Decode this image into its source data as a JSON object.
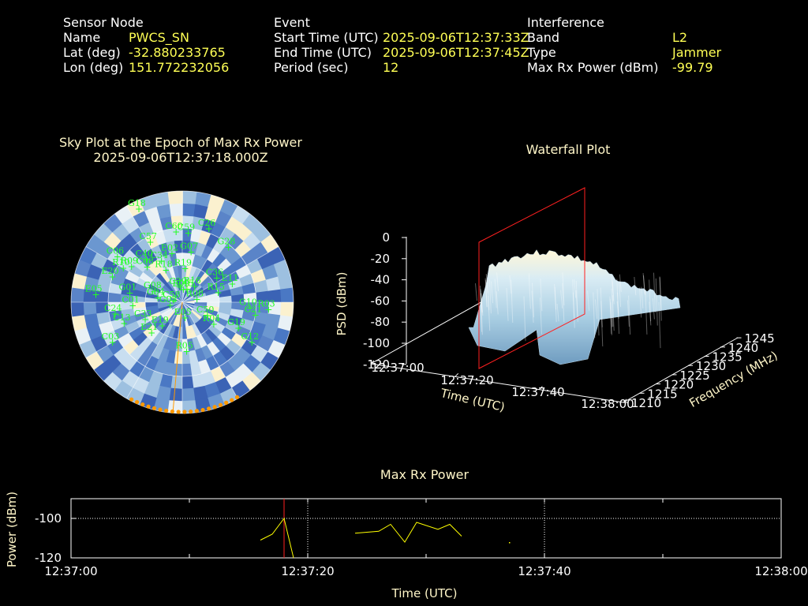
{
  "header": {
    "sensor": {
      "title": "Sensor Node",
      "rows": [
        {
          "label": "Name",
          "value": "PWCS_SN"
        },
        {
          "label": "Lat (deg)",
          "value": "-32.880233765"
        },
        {
          "label": "Lon (deg)",
          "value": "151.772232056"
        }
      ]
    },
    "event": {
      "title": "Event",
      "rows": [
        {
          "label": "Start Time (UTC)",
          "value": "2025-09-06T12:37:33Z"
        },
        {
          "label": "End Time (UTC)",
          "value": "2025-09-06T12:37:45Z"
        },
        {
          "label": "Period (sec)",
          "value": "12"
        }
      ]
    },
    "interference": {
      "title": "Interference",
      "rows": [
        {
          "label": "Band",
          "value": "L2"
        },
        {
          "label": "Type",
          "value": "Jammer"
        },
        {
          "label": "Max Rx Power (dBm)",
          "value": "-99.79"
        }
      ]
    }
  },
  "colors": {
    "background": "#000000",
    "value_text": "#ffff55",
    "satellite": "#22ff22",
    "jammer_marker": "#ff9900",
    "marker_line": "#ff2020",
    "power_line": "#ffff00"
  },
  "chart_data": [
    {
      "type": "scatter",
      "subtype": "polar-sky-plot",
      "title": "Sky Plot at the Epoch of Max Rx Power",
      "subtitle": "2025-09-06T12:37:18.000Z",
      "satellites": [
        {
          "id": "C39",
          "az": -8,
          "el": 83
        },
        {
          "id": "E09",
          "az": 5,
          "el": 85
        },
        {
          "id": "C45",
          "az": 20,
          "el": 84
        },
        {
          "id": "R16",
          "az": 38,
          "el": 79
        },
        {
          "id": "R18",
          "az": -27,
          "el": 66
        },
        {
          "id": "R19",
          "az": 5,
          "el": 68
        },
        {
          "id": "E02",
          "az": -12,
          "el": 55
        },
        {
          "id": "C34",
          "az": -27,
          "el": 58
        },
        {
          "id": "G07",
          "az": 10,
          "el": 54
        },
        {
          "id": "C57",
          "az": -28,
          "el": 40
        },
        {
          "id": "C60",
          "az": -5,
          "el": 38
        },
        {
          "id": "C59",
          "az": 5,
          "el": 39
        },
        {
          "id": "C40",
          "az": -40,
          "el": 50
        },
        {
          "id": "C26",
          "az": 20,
          "el": 32
        },
        {
          "id": "G08",
          "az": -68,
          "el": 71
        },
        {
          "id": "G28",
          "az": 40,
          "el": 37
        },
        {
          "id": "C36",
          "az": 55,
          "el": 61
        },
        {
          "id": "C08",
          "az": -45,
          "el": 55
        },
        {
          "id": "R09",
          "az": -55,
          "el": 45
        },
        {
          "id": "R10",
          "az": -60,
          "el": 40
        },
        {
          "id": "G18",
          "az": -25,
          "el": 12
        },
        {
          "id": "E20",
          "az": -70,
          "el": 35
        },
        {
          "id": "R15",
          "az": 75,
          "el": 65
        },
        {
          "id": "E11",
          "az": 70,
          "el": 52
        },
        {
          "id": "R08",
          "az": 80,
          "el": 83
        },
        {
          "id": "C58",
          "az": -79,
          "el": 88
        },
        {
          "id": "G01",
          "az": -80,
          "el": 52
        },
        {
          "id": "G04",
          "az": -80,
          "el": 75
        },
        {
          "id": "C06",
          "az": -55,
          "el": 31
        },
        {
          "id": "E05",
          "az": -85,
          "el": 25
        },
        {
          "id": "C01",
          "az": -94,
          "el": 55
        },
        {
          "id": "C24",
          "az": -100,
          "el": 40
        },
        {
          "id": "G10",
          "az": 95,
          "el": 40
        },
        {
          "id": "C21",
          "az": 100,
          "el": 35
        },
        {
          "id": "R03",
          "az": 95,
          "el": 25
        },
        {
          "id": "G12",
          "az": 120,
          "el": 30
        },
        {
          "id": "G19",
          "az": 115,
          "el": 45
        },
        {
          "id": "C50",
          "az": 118,
          "el": 72
        },
        {
          "id": "R04",
          "az": 125,
          "el": 64
        },
        {
          "id": "C13",
          "az": -110,
          "el": 45
        },
        {
          "id": "C33",
          "az": -115,
          "el": 62
        },
        {
          "id": "C03",
          "az": -120,
          "el": 30
        },
        {
          "id": "G03",
          "az": -105,
          "el": 85
        },
        {
          "id": "E21",
          "az": -135,
          "el": 60
        },
        {
          "id": "E19",
          "az": -140,
          "el": 70
        },
        {
          "id": "R05",
          "az": 175,
          "el": 55
        },
        {
          "id": "E05b",
          "az": 170,
          "el": 82
        }
      ],
      "jammer_az_range": [
        150,
        208
      ]
    },
    {
      "type": "area",
      "subtype": "3d-waterfall",
      "title": "Waterfall Plot",
      "xlabel": "Time (UTC)",
      "ylabel": "Frequency (MHz)",
      "zlabel": "PSD (dBm)",
      "x_ticks": [
        "12:37:00",
        "12:37:20",
        "12:37:40",
        "12:38:00"
      ],
      "y_ticks": [
        "1210",
        "1215",
        "1220",
        "1225",
        "1230",
        "1235",
        "1240",
        "1245"
      ],
      "z_ticks": [
        "0",
        "-20",
        "-40",
        "-60",
        "-80",
        "-100",
        "-120"
      ],
      "zlim": [
        -120,
        0
      ],
      "ylim": [
        1210,
        1245
      ],
      "marker_time": "12:37:18"
    },
    {
      "type": "line",
      "title": "Max Rx Power",
      "xlabel": "Time (UTC)",
      "ylabel": "Power (dBm)",
      "x_ticks": [
        "12:37:00",
        "12:37:20",
        "12:37:40",
        "12:38:00"
      ],
      "y_ticks": [
        "-100",
        "-120"
      ],
      "ylim": [
        -120,
        -90
      ],
      "xlim_sec": [
        0,
        60
      ],
      "marker_sec": 18,
      "segments": [
        [
          [
            16,
            -111
          ],
          [
            17,
            -108
          ],
          [
            18,
            -100
          ],
          [
            18.8,
            -120
          ]
        ],
        [
          [
            24,
            -107.5
          ],
          [
            26,
            -106.5
          ],
          [
            27,
            -103
          ],
          [
            28.2,
            -112
          ],
          [
            29.2,
            -102
          ],
          [
            31,
            -105.5
          ],
          [
            32,
            -103
          ],
          [
            33,
            -109
          ]
        ]
      ],
      "points": [
        [
          37,
          -112
        ]
      ]
    }
  ]
}
